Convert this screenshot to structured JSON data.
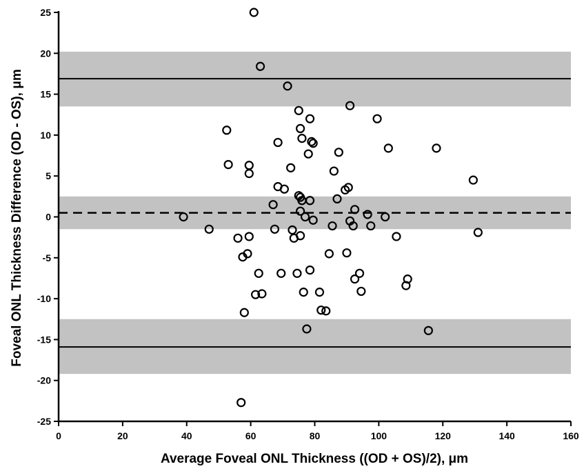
{
  "chart_data": {
    "type": "scatter",
    "title": "",
    "xlabel": "Average Foveal ONL Thickness ((OD + OS)/2), μm",
    "ylabel": "Foveal ONL Thickness Difference (OD - OS), μm",
    "xlim": [
      0,
      160
    ],
    "ylim": [
      -25,
      25
    ],
    "x_ticks": [
      0,
      20,
      40,
      60,
      80,
      100,
      120,
      140,
      160
    ],
    "y_ticks": [
      -25,
      -20,
      -15,
      -10,
      -5,
      0,
      5,
      10,
      15,
      20,
      25
    ],
    "x_tick_labels": [
      "0",
      "20",
      "40",
      "60",
      "80",
      "100",
      "120",
      "140",
      "160"
    ],
    "y_tick_labels": [
      "-25",
      "-20",
      "-15",
      "-10",
      "-5",
      "0",
      "5",
      "10",
      "15",
      "20",
      "25"
    ],
    "grid": false,
    "legend": "none",
    "mean_difference": 0.5,
    "upper_limit_of_agreement": 16.9,
    "lower_limit_of_agreement": -15.9,
    "confidence_bands": [
      {
        "lower": 13.5,
        "upper": 20.2
      },
      {
        "lower": -1.5,
        "upper": 2.5
      },
      {
        "lower": -19.2,
        "upper": -12.5
      }
    ],
    "colors": {
      "band": "#c2c2c2",
      "line": "#000000",
      "marker": "#000000"
    },
    "points": [
      {
        "x": 39.0,
        "y": 0.0
      },
      {
        "x": 47.0,
        "y": -1.5
      },
      {
        "x": 52.5,
        "y": 10.6
      },
      {
        "x": 53.0,
        "y": 6.4
      },
      {
        "x": 56.0,
        "y": -2.6
      },
      {
        "x": 57.0,
        "y": -22.7
      },
      {
        "x": 57.5,
        "y": -4.9
      },
      {
        "x": 58.0,
        "y": -11.7
      },
      {
        "x": 59.0,
        "y": -4.5
      },
      {
        "x": 59.5,
        "y": 5.3
      },
      {
        "x": 59.5,
        "y": 6.3
      },
      {
        "x": 59.5,
        "y": -2.4
      },
      {
        "x": 61.0,
        "y": 25.0
      },
      {
        "x": 61.5,
        "y": -9.5
      },
      {
        "x": 62.5,
        "y": -6.9
      },
      {
        "x": 63.0,
        "y": 18.4
      },
      {
        "x": 63.5,
        "y": -9.4
      },
      {
        "x": 67.0,
        "y": 1.5
      },
      {
        "x": 67.5,
        "y": -1.5
      },
      {
        "x": 68.5,
        "y": 9.1
      },
      {
        "x": 68.5,
        "y": 3.7
      },
      {
        "x": 69.5,
        "y": -6.9
      },
      {
        "x": 70.5,
        "y": 3.4
      },
      {
        "x": 71.5,
        "y": 16.0
      },
      {
        "x": 72.5,
        "y": 6.0
      },
      {
        "x": 73.0,
        "y": -1.6
      },
      {
        "x": 73.5,
        "y": -2.6
      },
      {
        "x": 74.5,
        "y": -6.9
      },
      {
        "x": 75.0,
        "y": 2.6
      },
      {
        "x": 75.0,
        "y": 13.0
      },
      {
        "x": 75.5,
        "y": 2.4
      },
      {
        "x": 75.5,
        "y": 10.8
      },
      {
        "x": 75.5,
        "y": 0.7
      },
      {
        "x": 75.5,
        "y": -2.3
      },
      {
        "x": 76.0,
        "y": 2.0
      },
      {
        "x": 76.0,
        "y": 9.6
      },
      {
        "x": 76.5,
        "y": -9.2
      },
      {
        "x": 77.0,
        "y": 0.0
      },
      {
        "x": 77.5,
        "y": -13.7
      },
      {
        "x": 78.0,
        "y": 7.7
      },
      {
        "x": 78.5,
        "y": 12.0
      },
      {
        "x": 78.5,
        "y": 2.0
      },
      {
        "x": 78.5,
        "y": -6.5
      },
      {
        "x": 79.0,
        "y": 9.2
      },
      {
        "x": 79.5,
        "y": 9.0
      },
      {
        "x": 79.5,
        "y": -0.4
      },
      {
        "x": 81.5,
        "y": -9.2
      },
      {
        "x": 82.0,
        "y": -11.4
      },
      {
        "x": 83.5,
        "y": -11.5
      },
      {
        "x": 84.5,
        "y": -4.5
      },
      {
        "x": 85.5,
        "y": -1.1
      },
      {
        "x": 86.0,
        "y": 5.6
      },
      {
        "x": 87.0,
        "y": 2.2
      },
      {
        "x": 87.5,
        "y": 7.9
      },
      {
        "x": 89.5,
        "y": 3.3
      },
      {
        "x": 90.0,
        "y": -4.4
      },
      {
        "x": 90.5,
        "y": 3.6
      },
      {
        "x": 91.0,
        "y": 13.6
      },
      {
        "x": 91.0,
        "y": -0.5
      },
      {
        "x": 92.0,
        "y": -1.1
      },
      {
        "x": 92.5,
        "y": 0.9
      },
      {
        "x": 92.5,
        "y": -7.6
      },
      {
        "x": 94.0,
        "y": -6.9
      },
      {
        "x": 94.5,
        "y": -9.1
      },
      {
        "x": 96.5,
        "y": 0.3
      },
      {
        "x": 97.5,
        "y": -1.1
      },
      {
        "x": 99.5,
        "y": 12.0
      },
      {
        "x": 102.0,
        "y": 0.0
      },
      {
        "x": 103.0,
        "y": 8.4
      },
      {
        "x": 105.5,
        "y": -2.4
      },
      {
        "x": 108.5,
        "y": -8.4
      },
      {
        "x": 109.0,
        "y": -7.6
      },
      {
        "x": 115.5,
        "y": -13.9
      },
      {
        "x": 118.0,
        "y": 8.4
      },
      {
        "x": 129.5,
        "y": 4.5
      },
      {
        "x": 131.0,
        "y": -1.9
      }
    ]
  }
}
